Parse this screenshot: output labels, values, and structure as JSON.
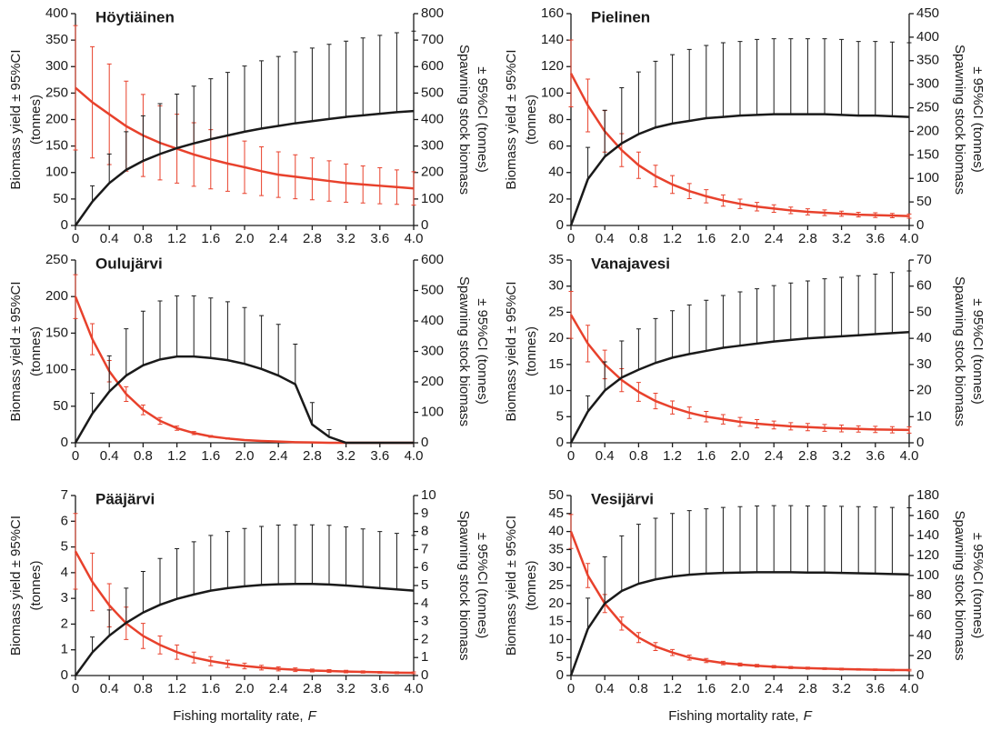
{
  "chart_data": [
    {
      "type": "line",
      "title": "Höytiäinen",
      "ylabel": [
        "Biomass yield ± 95%CI",
        "(tonnes)"
      ],
      "y2label": [
        "Spawning stock biomass",
        "± 95%CI (tonnes)"
      ],
      "x": [
        0,
        0.2,
        0.4,
        0.6,
        0.8,
        1,
        1.2,
        1.4,
        1.6,
        1.8,
        2,
        2.2,
        2.4,
        2.6,
        2.8,
        3,
        3.2,
        3.4,
        3.6,
        3.8,
        4
      ],
      "xlim": [
        0,
        4
      ],
      "xticks": [
        0,
        0.4,
        0.8,
        1.2,
        1.6,
        {
          "value": 2,
          "label": "2.0"
        },
        2.4,
        2.8,
        3.2,
        3.6,
        {
          "value": 4,
          "label": "4.0"
        }
      ],
      "ylim": [
        0,
        400
      ],
      "yticks": [
        0,
        50,
        100,
        150,
        200,
        250,
        300,
        350,
        400
      ],
      "y2lim": [
        0,
        800
      ],
      "y2ticks": [
        0,
        100,
        200,
        300,
        400,
        500,
        600,
        700,
        800
      ],
      "series": [
        {
          "color": "#e8412c",
          "axis": "y2",
          "error_direction": "both",
          "values": [
            520,
            465,
            420,
            375,
            340,
            312,
            290,
            268,
            250,
            234,
            220,
            205,
            192,
            184,
            176,
            168,
            160,
            155,
            150,
            145,
            140
          ],
          "errors": [
            235,
            210,
            190,
            170,
            155,
            140,
            130,
            120,
            112,
            105,
            99,
            92,
            86,
            83,
            79,
            76,
            72,
            70,
            68,
            65,
            63
          ]
        },
        {
          "color": "#1a1a1a",
          "axis": "y",
          "error_direction": "up",
          "values": [
            0,
            45,
            80,
            105,
            122,
            135,
            146,
            155,
            163,
            170,
            177,
            183,
            188,
            193,
            197,
            201,
            205,
            208,
            211,
            214,
            216
          ],
          "errors": [
            0,
            30,
            55,
            72,
            85,
            95,
            102,
            108,
            114,
            119,
            124,
            128,
            131,
            135,
            138,
            141,
            143,
            146,
            148,
            150,
            151
          ]
        }
      ]
    },
    {
      "type": "line",
      "title": "Pielinen",
      "ylabel": [
        "Biomass yield ± 95%CI",
        "(tonnes)"
      ],
      "y2label": [
        "Spawning stock biomass",
        "± 95%CI (tonnes)"
      ],
      "x": [
        0,
        0.2,
        0.4,
        0.6,
        0.8,
        1,
        1.2,
        1.4,
        1.6,
        1.8,
        2,
        2.2,
        2.4,
        2.6,
        2.8,
        3,
        3.2,
        3.4,
        3.6,
        3.8,
        4
      ],
      "xlim": [
        0,
        4
      ],
      "xticks": [
        0,
        0.4,
        0.8,
        1.2,
        1.6,
        {
          "value": 2,
          "label": "2.0"
        },
        2.4,
        2.8,
        3.2,
        3.6,
        {
          "value": 4,
          "label": "4.0"
        }
      ],
      "ylim": [
        0,
        160
      ],
      "yticks": [
        0,
        20,
        40,
        60,
        80,
        100,
        120,
        140,
        160
      ],
      "y2lim": [
        0,
        450
      ],
      "y2ticks": [
        0,
        50,
        100,
        150,
        200,
        250,
        300,
        350,
        400,
        450
      ],
      "series": [
        {
          "color": "#e8412c",
          "axis": "y2",
          "error_direction": "both",
          "values": [
            323,
            255,
            200,
            160,
            128,
            105,
            87,
            73,
            62,
            53,
            46,
            40,
            36,
            32,
            29,
            27,
            25,
            23,
            22,
            21,
            20
          ],
          "errors": [
            71,
            56,
            44,
            35,
            28,
            23,
            19,
            16,
            14,
            12,
            10,
            9,
            8,
            7,
            6.5,
            6,
            5.5,
            5,
            5,
            4.5,
            4.5
          ]
        },
        {
          "color": "#1a1a1a",
          "axis": "y",
          "error_direction": "up",
          "values": [
            0,
            35,
            52,
            62,
            69,
            74,
            77,
            79,
            81,
            82,
            83,
            83.5,
            84,
            84,
            84,
            84,
            83.5,
            83,
            83,
            82.5,
            82
          ],
          "errors": [
            0,
            24,
            35,
            42,
            47,
            50,
            52,
            54,
            55,
            56,
            56,
            57,
            57,
            57,
            57,
            57,
            57,
            56,
            56,
            56,
            56
          ]
        }
      ]
    },
    {
      "type": "line",
      "title": "Oulujärvi",
      "ylabel": [
        "Biomass yield ± 95%CI",
        "(tonnes)"
      ],
      "y2label": [
        "Spawning stock biomass",
        "± 95%CI (tonnes)"
      ],
      "x": [
        0,
        0.2,
        0.4,
        0.6,
        0.8,
        1,
        1.2,
        1.4,
        1.6,
        1.8,
        2,
        2.2,
        2.4,
        2.6,
        2.8,
        3,
        3.2,
        3.4,
        3.6,
        3.8,
        4
      ],
      "xlim": [
        0,
        4
      ],
      "xticks": [
        0,
        0.4,
        0.8,
        1.2,
        1.6,
        {
          "value": 2,
          "label": "2.0"
        },
        2.4,
        2.8,
        3.2,
        3.6,
        {
          "value": 4,
          "label": "4.0"
        }
      ],
      "ylim": [
        0,
        250
      ],
      "yticks": [
        0,
        50,
        100,
        150,
        200,
        250
      ],
      "y2lim": [
        0,
        600
      ],
      "y2ticks": [
        0,
        100,
        200,
        300,
        400,
        500,
        600
      ],
      "series": [
        {
          "color": "#e8412c",
          "axis": "y2",
          "error_direction": "both",
          "values": [
            480,
            340,
            235,
            160,
            108,
            72,
            48,
            32,
            21,
            14,
            9,
            6,
            4,
            2,
            1,
            0,
            0,
            0,
            0,
            0,
            0
          ],
          "errors": [
            72,
            51,
            35,
            24,
            16,
            11,
            7,
            5,
            3,
            2,
            1,
            1,
            1,
            0,
            0,
            0,
            0,
            0,
            0,
            0,
            0
          ]
        },
        {
          "color": "#1a1a1a",
          "axis": "y",
          "error_direction": "up",
          "values": [
            0,
            40,
            70,
            92,
            106,
            114,
            118,
            118,
            116,
            113,
            108,
            101,
            92,
            80,
            25,
            8,
            0,
            0,
            0,
            0,
            0
          ],
          "errors": [
            0,
            28,
            49,
            64,
            74,
            80,
            83,
            83,
            82,
            80,
            77,
            73,
            70,
            55,
            30,
            10,
            0,
            0,
            0,
            0,
            0
          ]
        }
      ]
    },
    {
      "type": "line",
      "title": "Vanajavesi",
      "ylabel": [
        "Biomass yield ± 95%CI",
        "(tonnes)"
      ],
      "y2label": [
        "Spawning stock biomass",
        "± 95%CI (tonnes)"
      ],
      "x": [
        0,
        0.2,
        0.4,
        0.6,
        0.8,
        1,
        1.2,
        1.4,
        1.6,
        1.8,
        2,
        2.2,
        2.4,
        2.6,
        2.8,
        3,
        3.2,
        3.4,
        3.6,
        3.8,
        4
      ],
      "xlim": [
        0,
        4
      ],
      "xticks": [
        0,
        0.4,
        0.8,
        1.2,
        1.6,
        {
          "value": 2,
          "label": "2.0"
        },
        2.4,
        2.8,
        3.2,
        3.6,
        {
          "value": 4,
          "label": "4.0"
        }
      ],
      "ylim": [
        0,
        35
      ],
      "yticks": [
        0,
        5,
        10,
        15,
        20,
        25,
        30,
        35
      ],
      "y2lim": [
        0,
        70
      ],
      "y2ticks": [
        0,
        10,
        20,
        30,
        40,
        50,
        60,
        70
      ],
      "series": [
        {
          "color": "#e8412c",
          "axis": "y2",
          "error_direction": "both",
          "values": [
            49,
            38,
            30,
            24,
            19.5,
            16,
            13.5,
            11.5,
            10,
            9,
            8,
            7.3,
            6.8,
            6.3,
            6,
            5.7,
            5.5,
            5.3,
            5.1,
            5,
            4.9
          ],
          "errors": [
            9,
            7,
            5.5,
            4.4,
            3.6,
            3,
            2.5,
            2.2,
            2,
            1.8,
            1.7,
            1.6,
            1.5,
            1.4,
            1.4,
            1.3,
            1.3,
            1.2,
            1.2,
            1.2,
            1.2
          ]
        },
        {
          "color": "#1a1a1a",
          "axis": "y",
          "error_direction": "up",
          "values": [
            0,
            6,
            10,
            12.5,
            14,
            15.3,
            16.3,
            17,
            17.6,
            18.2,
            18.6,
            19,
            19.4,
            19.7,
            20,
            20.2,
            20.4,
            20.6,
            20.8,
            21,
            21.2
          ],
          "errors": [
            0,
            3,
            5.5,
            7,
            7.8,
            8.5,
            9,
            9.4,
            9.7,
            10,
            10.3,
            10.5,
            10.7,
            10.9,
            11,
            11.2,
            11.3,
            11.4,
            11.5,
            11.6,
            11.7
          ]
        }
      ]
    },
    {
      "type": "line",
      "title": "Pääjärvi",
      "ylabel": [
        "Biomass yield ± 95%CI",
        "(tonnes)"
      ],
      "y2label": [
        "Spawning stock biomass",
        "± 95%CI (tonnes)"
      ],
      "xlabel": "Fishing mortality rate,",
      "xlabel_symbol": "F",
      "x": [
        0,
        0.2,
        0.4,
        0.6,
        0.8,
        1,
        1.2,
        1.4,
        1.6,
        1.8,
        2,
        2.2,
        2.4,
        2.6,
        2.8,
        3,
        3.2,
        3.4,
        3.6,
        3.8,
        4
      ],
      "xlim": [
        0,
        4
      ],
      "xticks": [
        0,
        0.4,
        0.8,
        1.2,
        1.6,
        {
          "value": 2,
          "label": "2.0"
        },
        2.4,
        2.8,
        3.2,
        3.6,
        {
          "value": 4,
          "label": "4.0"
        }
      ],
      "ylim": [
        0,
        7
      ],
      "yticks": [
        0,
        1,
        2,
        3,
        4,
        5,
        6,
        7
      ],
      "y2lim": [
        0,
        10
      ],
      "y2ticks": [
        0,
        1,
        2,
        3,
        4,
        5,
        6,
        7,
        8,
        9,
        10
      ],
      "series": [
        {
          "color": "#e8412c",
          "axis": "y2",
          "error_direction": "both",
          "values": [
            6.9,
            5.2,
            3.9,
            2.9,
            2.2,
            1.7,
            1.3,
            1.0,
            0.8,
            0.65,
            0.53,
            0.44,
            0.37,
            0.32,
            0.28,
            0.25,
            0.22,
            0.2,
            0.18,
            0.16,
            0.15
          ],
          "errors": [
            2.1,
            1.6,
            1.2,
            0.9,
            0.7,
            0.5,
            0.4,
            0.3,
            0.25,
            0.2,
            0.16,
            0.13,
            0.11,
            0.1,
            0.08,
            0.08,
            0.07,
            0.06,
            0.05,
            0.05,
            0.05
          ]
        },
        {
          "color": "#1a1a1a",
          "axis": "y",
          "error_direction": "up",
          "values": [
            0,
            0.9,
            1.55,
            2.05,
            2.45,
            2.75,
            2.98,
            3.15,
            3.3,
            3.4,
            3.47,
            3.52,
            3.55,
            3.56,
            3.56,
            3.54,
            3.5,
            3.45,
            3.4,
            3.35,
            3.3
          ],
          "errors": [
            0,
            0.6,
            1,
            1.35,
            1.6,
            1.8,
            1.95,
            2.05,
            2.15,
            2.2,
            2.25,
            2.28,
            2.3,
            2.3,
            2.3,
            2.3,
            2.28,
            2.25,
            2.2,
            2.18,
            2.15
          ]
        }
      ]
    },
    {
      "type": "line",
      "title": "Vesijärvi",
      "ylabel": [
        "Biomass yield ± 95%CI",
        "(tonnes)"
      ],
      "y2label": [
        "Spawning stock biomass",
        "± 95%CI (tonnes)"
      ],
      "xlabel": "Fishing mortality rate,",
      "xlabel_symbol": "F",
      "x": [
        0,
        0.2,
        0.4,
        0.6,
        0.8,
        1,
        1.2,
        1.4,
        1.6,
        1.8,
        2,
        2.2,
        2.4,
        2.6,
        2.8,
        3,
        3.2,
        3.4,
        3.6,
        3.8,
        4
      ],
      "xlim": [
        0,
        4
      ],
      "xticks": [
        0,
        0.4,
        0.8,
        1.2,
        1.6,
        {
          "value": 2,
          "label": "2.0"
        },
        2.4,
        2.8,
        3.2,
        3.6,
        {
          "value": 4,
          "label": "4.0"
        }
      ],
      "ylim": [
        0,
        50
      ],
      "yticks": [
        0,
        5,
        10,
        15,
        20,
        25,
        30,
        35,
        40,
        45,
        50
      ],
      "y2lim": [
        0,
        180
      ],
      "y2ticks": [
        0,
        20,
        40,
        60,
        80,
        100,
        120,
        140,
        160,
        180
      ],
      "series": [
        {
          "color": "#e8412c",
          "axis": "y2",
          "error_direction": "both",
          "values": [
            144,
            100,
            72,
            52,
            38,
            29,
            23,
            18,
            15,
            12.5,
            11,
            9.8,
            8.8,
            8,
            7.4,
            6.9,
            6.5,
            6.1,
            5.8,
            5.6,
            5.4
          ],
          "errors": [
            17,
            12,
            9,
            6.5,
            5,
            4,
            3,
            2.5,
            2,
            1.7,
            1.5,
            1.3,
            1.2,
            1.1,
            1,
            0.9,
            0.9,
            0.8,
            0.8,
            0.8,
            0.7
          ]
        },
        {
          "color": "#1a1a1a",
          "axis": "y",
          "error_direction": "up",
          "values": [
            0,
            13,
            20,
            23.5,
            25.5,
            26.7,
            27.5,
            28,
            28.3,
            28.5,
            28.6,
            28.7,
            28.7,
            28.7,
            28.6,
            28.6,
            28.5,
            28.4,
            28.3,
            28.2,
            28.1
          ],
          "errors": [
            0,
            8.5,
            13,
            15.3,
            16.5,
            17,
            17.5,
            17.8,
            18,
            18.2,
            18.3,
            18.4,
            18.5,
            18.5,
            18.5,
            18.5,
            18.5,
            18.5,
            18.5,
            18.5,
            18.5
          ]
        }
      ]
    }
  ]
}
